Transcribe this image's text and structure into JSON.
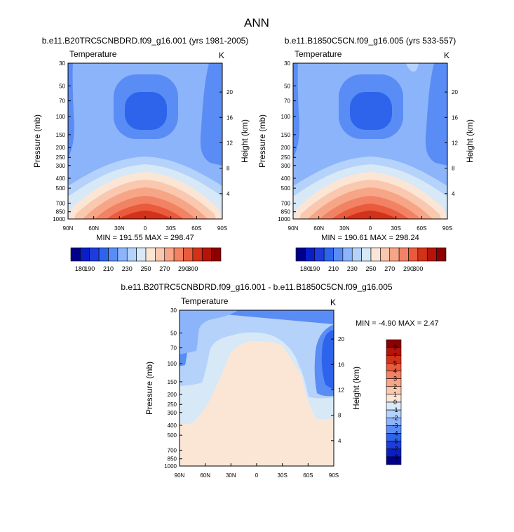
{
  "figure_title": "ANN",
  "colors": {
    "panel_levels": [
      "#00008b",
      "#0a1ec8",
      "#1e3cdc",
      "#2d64eb",
      "#5a8cf5",
      "#8cb4fa",
      "#b4d2fa",
      "#d7e8f7",
      "#fbe6d6",
      "#fac8ae",
      "#f7a587",
      "#f28264",
      "#ea5a3c",
      "#d23219",
      "#b4140a",
      "#8c0000"
    ],
    "diff_levels": [
      "#00008b",
      "#0a1ec8",
      "#1e3cdc",
      "#2d64eb",
      "#5a8cf5",
      "#8cb4fa",
      "#b4d2fa",
      "#d7e8f7",
      "#fbe6d6",
      "#fac8ae",
      "#f7a587",
      "#f28264",
      "#ea5a3c",
      "#d23219",
      "#b4140a",
      "#8c0000"
    ]
  },
  "chart_data": [
    {
      "type": "heatmap",
      "title": "b.e11.B20TRC5CNBDRD.f09_g16.001 (yrs 1981-2005)",
      "variable_label": "Temperature",
      "units_label": "K",
      "xlabel": "",
      "ylabel_left": "Pressure (mb)",
      "ylabel_right": "Height (km)",
      "x_ticks": [
        "90N",
        "60N",
        "30N",
        "0",
        "30S",
        "60S",
        "90S"
      ],
      "x_range": [
        90,
        -90
      ],
      "y_range_mb": [
        1000,
        30
      ],
      "y_ticks_mb": [
        30,
        50,
        70,
        100,
        150,
        200,
        250,
        300,
        400,
        500,
        700,
        850,
        1000
      ],
      "height_ticks_km": [
        4,
        8,
        12,
        16,
        20
      ],
      "stats_text": "MIN = 191.55  MAX = 298.47",
      "min": 191.55,
      "max": 298.47,
      "colorbar_levels": [
        180,
        190,
        200,
        210,
        220,
        230,
        240,
        250,
        260,
        270,
        280,
        290,
        300
      ],
      "colorbar_labels": [
        "180",
        "190",
        "210",
        "230",
        "250",
        "270",
        "290",
        "300"
      ],
      "colorbar_label_positions": [
        1,
        2,
        4,
        6,
        8,
        10,
        12,
        13
      ]
    },
    {
      "type": "heatmap",
      "title": "b.e11.B1850C5CN.f09_g16.005 (yrs 533-557)",
      "variable_label": "Temperature",
      "units_label": "K",
      "xlabel": "",
      "ylabel_left": "Pressure (mb)",
      "ylabel_right": "Height (km)",
      "x_ticks": [
        "90N",
        "60N",
        "30N",
        "0",
        "30S",
        "60S",
        "90S"
      ],
      "x_range": [
        90,
        -90
      ],
      "y_range_mb": [
        1000,
        30
      ],
      "y_ticks_mb": [
        30,
        50,
        70,
        100,
        150,
        200,
        250,
        300,
        400,
        500,
        700,
        850,
        1000
      ],
      "height_ticks_km": [
        4,
        8,
        12,
        16,
        20
      ],
      "stats_text": "MIN = 190.61  MAX = 298.24",
      "min": 190.61,
      "max": 298.24,
      "colorbar_levels": [
        180,
        190,
        200,
        210,
        220,
        230,
        240,
        250,
        260,
        270,
        280,
        290,
        300
      ],
      "colorbar_labels": [
        "180",
        "190",
        "210",
        "230",
        "250",
        "270",
        "290",
        "300"
      ],
      "colorbar_label_positions": [
        1,
        2,
        4,
        6,
        8,
        10,
        12,
        13
      ]
    },
    {
      "type": "heatmap",
      "title": "b.e11.B20TRC5CNBDRD.f09_g16.001 - b.e11.B1850C5CN.f09_g16.005",
      "variable_label": "Temperature",
      "units_label": "K",
      "xlabel": "",
      "ylabel_left": "Pressure (mb)",
      "ylabel_right": "Height (km)",
      "x_ticks": [
        "90N",
        "60N",
        "30N",
        "0",
        "30S",
        "60S",
        "90S"
      ],
      "x_range": [
        90,
        -90
      ],
      "y_range_mb": [
        1000,
        30
      ],
      "y_ticks_mb": [
        30,
        50,
        70,
        100,
        150,
        200,
        250,
        300,
        400,
        500,
        700,
        850,
        1000
      ],
      "height_ticks_km": [
        4,
        8,
        12,
        16,
        20
      ],
      "stats_text": "MIN = -4.90  MAX =  2.47",
      "min": -4.9,
      "max": 2.47,
      "colorbar_levels": [
        -9,
        -7,
        -5,
        -4,
        -3,
        -2,
        -1,
        0,
        1,
        2,
        3,
        4,
        5,
        7,
        9
      ],
      "colorbar_labels": [
        "9",
        "7",
        "5",
        "4",
        "3",
        "2",
        "1",
        "0",
        "-1",
        "-2",
        "-3",
        "-4",
        "-5",
        "-7",
        "-9"
      ]
    }
  ]
}
